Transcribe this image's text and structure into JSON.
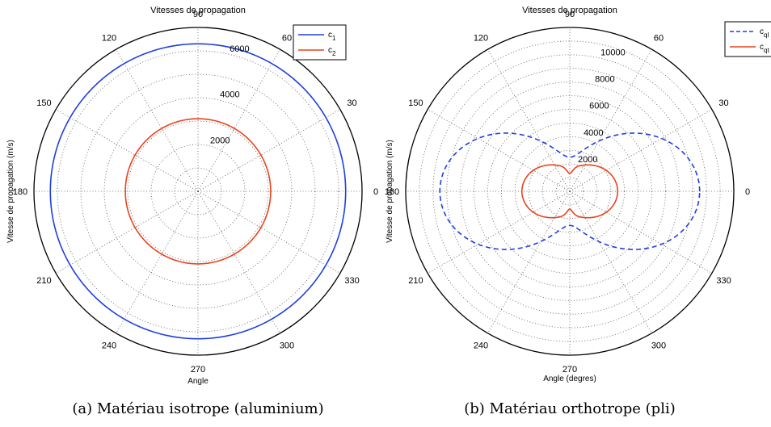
{
  "chart_data": [
    {
      "type": "polar-line",
      "title": "Vitesses de propagation",
      "xlabel": "Angle",
      "ylabel": "Vitesse de propagation (m/s)",
      "caption": "(a) Matériau isotrope (aluminium)",
      "angle_ticks": [
        "0",
        "30",
        "60",
        "90",
        "120",
        "150",
        "180",
        "210",
        "240",
        "270",
        "300",
        "330"
      ],
      "r_max": 7000,
      "r_ticks": [
        2000,
        4000,
        6000
      ],
      "r_tick_labels": [
        "2000",
        "4000",
        "6000"
      ],
      "grid": true,
      "legend_position": "top-right",
      "series": [
        {
          "name": "c",
          "subscript": "1",
          "color": "#1f3fdd",
          "dash": "solid",
          "model": "constant",
          "params": {
            "r": 6300
          }
        },
        {
          "name": "c",
          "subscript": "2",
          "color": "#e8441c",
          "dash": "solid",
          "model": "constant",
          "params": {
            "r": 3100
          }
        }
      ]
    },
    {
      "type": "polar-line",
      "title": "Vitesses de propagation",
      "xlabel": "Angle (degres)",
      "ylabel": "Vitesse de propagation (m/s)",
      "caption": "(b) Matériau orthotrope (pli)",
      "angle_ticks": [
        "0",
        "30",
        "60",
        "90",
        "120",
        "150",
        "180",
        "210",
        "240",
        "270",
        "300",
        "330"
      ],
      "r_max": 12000,
      "r_ticks": [
        2000,
        4000,
        6000,
        8000,
        10000
      ],
      "r_tick_labels": [
        "2000",
        "4000",
        "6000",
        "8000",
        "10000"
      ],
      "grid": true,
      "legend_position": "top-right",
      "series": [
        {
          "name": "c",
          "subscript": "ql",
          "color": "#1f3fdd",
          "dash": "dashed",
          "model": "lobed",
          "params": {
            "base": 2500,
            "lobe": 7000,
            "dip_center": 90,
            "dip_width": 40,
            "dip_depth": 0
          }
        },
        {
          "name": "c",
          "subscript": "qt",
          "color": "#e8441c",
          "dash": "solid",
          "model": "lobed",
          "params": {
            "base": 1800,
            "lobe": 1700,
            "dip_center": 90,
            "dip_width": 8,
            "dip_depth": 500
          }
        }
      ]
    }
  ]
}
